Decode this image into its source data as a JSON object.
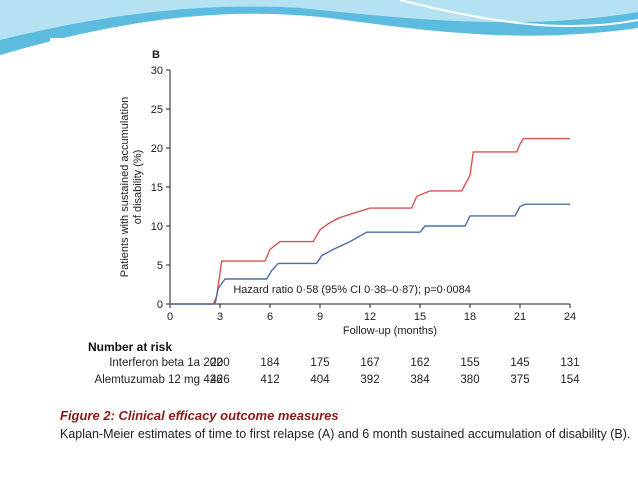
{
  "slide": {
    "background": "#ffffff",
    "swoosh_color": "#3fb0d9"
  },
  "chart_data": {
    "type": "line",
    "panel_label": "B",
    "ylabel": "Patients with sustained accumulation of disability (%)",
    "xlabel": "Follow-up (months)",
    "xlim": [
      0,
      24
    ],
    "ylim": [
      0,
      30
    ],
    "x_ticks": [
      0,
      3,
      6,
      9,
      12,
      15,
      18,
      21,
      24
    ],
    "y_ticks": [
      0,
      5,
      10,
      15,
      20,
      25,
      30
    ],
    "annotation": "Hazard ratio 0·58 (95% CI 0·38–0·87); p=0·0084",
    "series": [
      {
        "name": "Interferon beta 1a",
        "color": "#d9534f",
        "steps": [
          [
            0,
            0
          ],
          [
            2.6,
            0
          ],
          [
            2.8,
            1
          ],
          [
            3.1,
            5.5
          ],
          [
            5.7,
            5.5
          ],
          [
            6,
            7
          ],
          [
            6.6,
            8
          ],
          [
            8.6,
            8
          ],
          [
            9,
            9.5
          ],
          [
            9.5,
            10.3
          ],
          [
            10.1,
            11
          ],
          [
            10.5,
            11.3
          ],
          [
            12,
            12.3
          ],
          [
            14.5,
            12.3
          ],
          [
            14.8,
            13.8
          ],
          [
            15.6,
            14.5
          ],
          [
            17.5,
            14.5
          ],
          [
            18,
            16.5
          ],
          [
            18.2,
            19.5
          ],
          [
            20.8,
            19.5
          ],
          [
            21,
            20.5
          ],
          [
            21.2,
            21.2
          ],
          [
            24,
            21.2
          ]
        ]
      },
      {
        "name": "Alemtuzumab 12 mg",
        "color": "#4a6fa5",
        "steps": [
          [
            0,
            0
          ],
          [
            2.7,
            0
          ],
          [
            2.9,
            2
          ],
          [
            3.3,
            3.2
          ],
          [
            5.8,
            3.2
          ],
          [
            6.1,
            4.3
          ],
          [
            6.5,
            5.2
          ],
          [
            8.8,
            5.2
          ],
          [
            9.1,
            6.2
          ],
          [
            9.8,
            7
          ],
          [
            10.8,
            8
          ],
          [
            11.8,
            9.2
          ],
          [
            15,
            9.2
          ],
          [
            15.3,
            10
          ],
          [
            17.7,
            10
          ],
          [
            18,
            11.3
          ],
          [
            20.7,
            11.3
          ],
          [
            21,
            12.5
          ],
          [
            21.3,
            12.8
          ],
          [
            24,
            12.8
          ]
        ]
      }
    ],
    "number_at_risk": {
      "header": "Number at risk",
      "times": [
        0,
        3,
        6,
        9,
        12,
        15,
        18,
        21,
        24
      ],
      "rows": [
        {
          "label": "Interferon beta 1a",
          "values": [
            "202",
            "200",
            "184",
            "175",
            "167",
            "162",
            "155",
            "145",
            "131"
          ]
        },
        {
          "label": "Alemtuzumab 12 mg",
          "values": [
            "426",
            "426",
            "412",
            "404",
            "392",
            "384",
            "380",
            "375",
            "154"
          ]
        }
      ]
    }
  },
  "caption": {
    "title": "Figure 2: Clinical efficacy outcome measures",
    "text": "Kaplan-Meier estimates of time to first relapse (A) and 6 month sustained accumulation of disability (B)."
  }
}
